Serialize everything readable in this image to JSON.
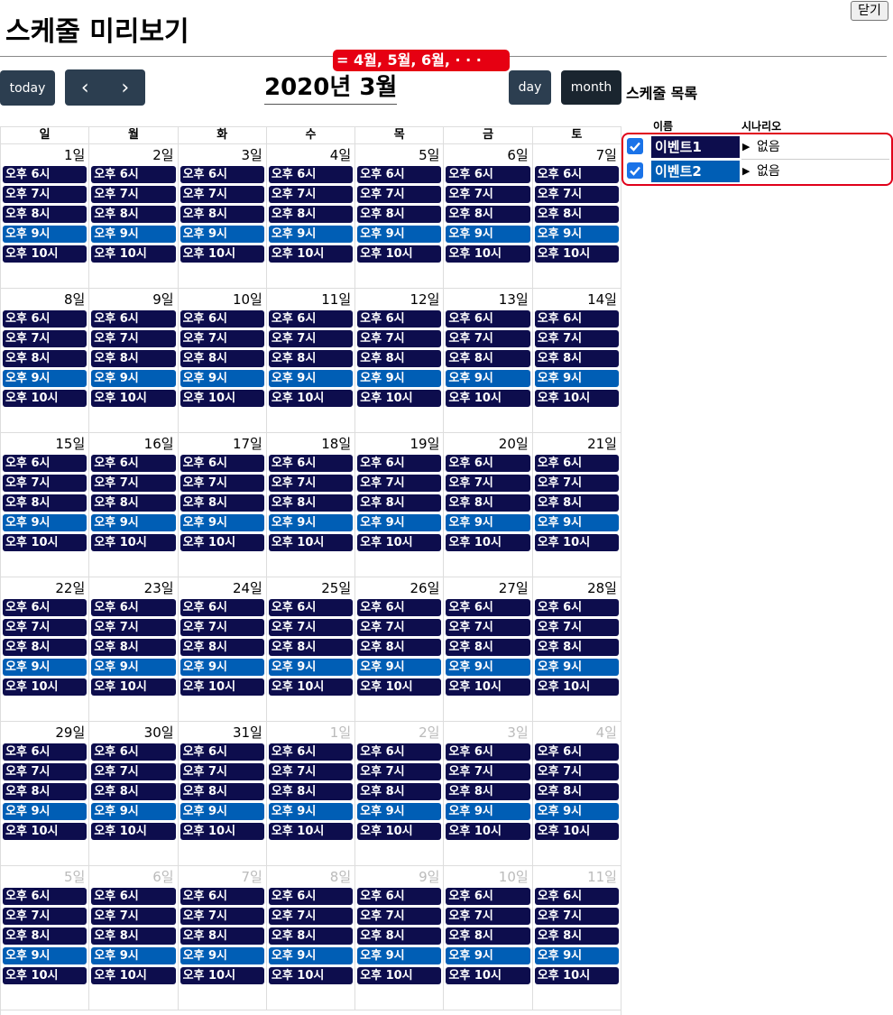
{
  "close_label": "닫기",
  "page_title": "스케줄 미리보기",
  "toolbar": {
    "today_label": "today",
    "prev_icon": "‹",
    "next_icon": "›",
    "month_title": "2020년 3월",
    "day_label": "day",
    "month_label": "month",
    "hint": "= 4월, 5월, 6월, · · ·"
  },
  "calendar": {
    "weekdays": [
      "일",
      "월",
      "화",
      "수",
      "목",
      "금",
      "토"
    ],
    "weeks": [
      [
        {
          "d": "1일",
          "o": false
        },
        {
          "d": "2일",
          "o": false
        },
        {
          "d": "3일",
          "o": false
        },
        {
          "d": "4일",
          "o": false
        },
        {
          "d": "5일",
          "o": false
        },
        {
          "d": "6일",
          "o": false
        },
        {
          "d": "7일",
          "o": false
        }
      ],
      [
        {
          "d": "8일",
          "o": false
        },
        {
          "d": "9일",
          "o": false
        },
        {
          "d": "10일",
          "o": false
        },
        {
          "d": "11일",
          "o": false
        },
        {
          "d": "12일",
          "o": false
        },
        {
          "d": "13일",
          "o": false
        },
        {
          "d": "14일",
          "o": false
        }
      ],
      [
        {
          "d": "15일",
          "o": false
        },
        {
          "d": "16일",
          "o": false
        },
        {
          "d": "17일",
          "o": false
        },
        {
          "d": "18일",
          "o": false
        },
        {
          "d": "19일",
          "o": false
        },
        {
          "d": "20일",
          "o": false
        },
        {
          "d": "21일",
          "o": false
        }
      ],
      [
        {
          "d": "22일",
          "o": false
        },
        {
          "d": "23일",
          "o": false
        },
        {
          "d": "24일",
          "o": false
        },
        {
          "d": "25일",
          "o": false
        },
        {
          "d": "26일",
          "o": false
        },
        {
          "d": "27일",
          "o": false
        },
        {
          "d": "28일",
          "o": false
        }
      ],
      [
        {
          "d": "29일",
          "o": false
        },
        {
          "d": "30일",
          "o": false
        },
        {
          "d": "31일",
          "o": false
        },
        {
          "d": "1일",
          "o": true
        },
        {
          "d": "2일",
          "o": true
        },
        {
          "d": "3일",
          "o": true
        },
        {
          "d": "4일",
          "o": true
        }
      ],
      [
        {
          "d": "5일",
          "o": true
        },
        {
          "d": "6일",
          "o": true
        },
        {
          "d": "7일",
          "o": true
        },
        {
          "d": "8일",
          "o": true
        },
        {
          "d": "9일",
          "o": true
        },
        {
          "d": "10일",
          "o": true
        },
        {
          "d": "11일",
          "o": true
        }
      ]
    ],
    "events": [
      {
        "label": "오후 6시",
        "kind": "e1"
      },
      {
        "label": "오후 7시",
        "kind": "e1"
      },
      {
        "label": "오후 8시",
        "kind": "e1"
      },
      {
        "label": "오후 9시",
        "kind": "e2"
      },
      {
        "label": "오후 10시",
        "kind": "e1"
      }
    ]
  },
  "schedule_list": {
    "title": "스케줄 목록",
    "col_name": "이름",
    "col_scenario": "시나리오",
    "items": [
      {
        "name": "이벤트1",
        "scenario": "없음",
        "checked": true,
        "color": "#0d0d4d"
      },
      {
        "name": "이벤트2",
        "scenario": "없음",
        "checked": true,
        "color": "#005eb5"
      }
    ]
  }
}
